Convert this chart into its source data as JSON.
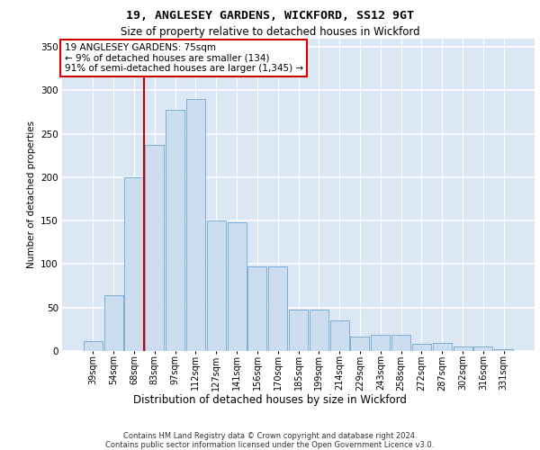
{
  "title_line1": "19, ANGLESEY GARDENS, WICKFORD, SS12 9GT",
  "title_line2": "Size of property relative to detached houses in Wickford",
  "xlabel": "Distribution of detached houses by size in Wickford",
  "ylabel": "Number of detached properties",
  "footer": "Contains HM Land Registry data © Crown copyright and database right 2024.\nContains public sector information licensed under the Open Government Licence v3.0.",
  "categories": [
    "39sqm",
    "54sqm",
    "68sqm",
    "83sqm",
    "97sqm",
    "112sqm",
    "127sqm",
    "141sqm",
    "156sqm",
    "170sqm",
    "185sqm",
    "199sqm",
    "214sqm",
    "229sqm",
    "243sqm",
    "258sqm",
    "272sqm",
    "287sqm",
    "302sqm",
    "316sqm",
    "331sqm"
  ],
  "bar_heights": [
    11,
    64,
    200,
    237,
    278,
    290,
    150,
    148,
    97,
    97,
    48,
    48,
    35,
    17,
    19,
    19,
    8,
    9,
    5,
    5,
    2
  ],
  "bar_color": "#ccddf0",
  "bar_edge_color": "#7aafd4",
  "bg_color": "#dce7f5",
  "grid_color": "#ffffff",
  "vline_color": "#cc0000",
  "vline_x_index": 2.5,
  "annotation_text": "19 ANGLESEY GARDENS: 75sqm\n← 9% of detached houses are smaller (134)\n91% of semi-detached houses are larger (1,345) →",
  "annotation_box_facecolor": "#ffffff",
  "annotation_box_edgecolor": "#cc0000",
  "ylim": [
    0,
    360
  ],
  "yticks": [
    0,
    50,
    100,
    150,
    200,
    250,
    300,
    350
  ],
  "title1_fontsize": 9.5,
  "title2_fontsize": 8.5,
  "ylabel_fontsize": 7.5,
  "xlabel_fontsize": 8.5,
  "tick_fontsize": 7.0,
  "footer_fontsize": 6.0,
  "annot_fontsize": 7.5
}
